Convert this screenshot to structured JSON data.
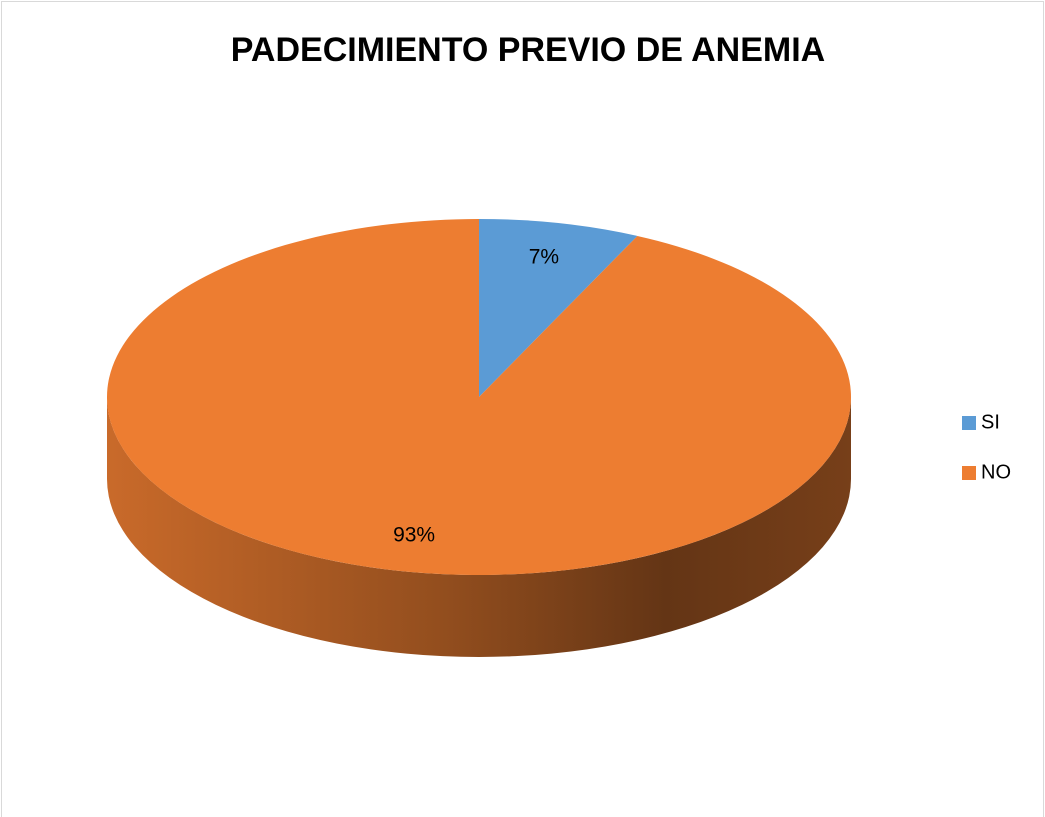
{
  "chart_data": {
    "type": "pie",
    "title": "PADECIMIENTO PREVIO DE ANEMIA",
    "categories": [
      "SI",
      "NO"
    ],
    "values": [
      7,
      93
    ],
    "value_labels": [
      "7%",
      "93%"
    ],
    "colors": [
      "#5b9bd5",
      "#ed7d31"
    ],
    "legend": "right"
  }
}
